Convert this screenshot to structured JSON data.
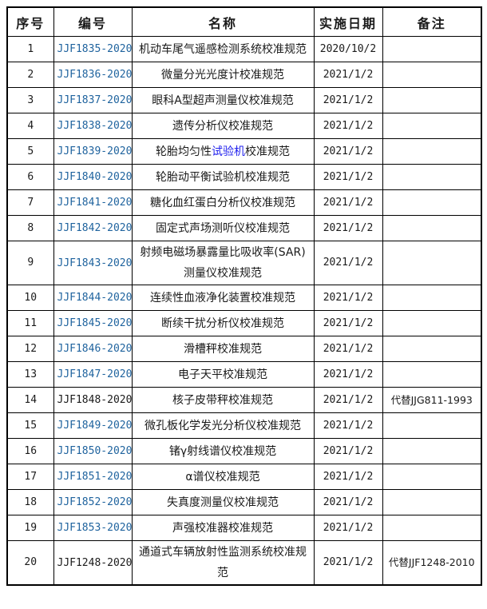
{
  "page": {
    "background": "#ffffff"
  },
  "colors": {
    "border": "#000000",
    "text": "#1a1a1a",
    "code_link_blue": "#1F639E",
    "inline_link_blue": "#2222EE"
  },
  "table": {
    "headers": [
      "序号",
      "编号",
      "名称",
      "实施日期",
      "备注"
    ],
    "rows": [
      {
        "no": "1",
        "code": "JJF1835-2020",
        "code_is_link": true,
        "name": "机动车尾气遥感检测系统校准规范",
        "date": "2020/10/2",
        "remark": ""
      },
      {
        "no": "2",
        "code": "JJF1836-2020",
        "code_is_link": true,
        "name": "微量分光光度计校准规范",
        "date": "2021/1/2",
        "remark": ""
      },
      {
        "no": "3",
        "code": "JJF1837-2020",
        "code_is_link": true,
        "name": "眼科A型超声测量仪校准规范",
        "date": "2021/1/2",
        "remark": ""
      },
      {
        "no": "4",
        "code": "JJF1838-2020",
        "code_is_link": true,
        "name": "遗传分析仪校准规范",
        "date": "2021/1/2",
        "remark": ""
      },
      {
        "no": "5",
        "code": "JJF1839-2020",
        "code_is_link": true,
        "name": [
          {
            "t": "轮胎均匀性",
            "link": false
          },
          {
            "t": "试验机",
            "link": true
          },
          {
            "t": "校准规范",
            "link": false
          }
        ],
        "date": "2021/1/2",
        "remark": ""
      },
      {
        "no": "6",
        "code": "JJF1840-2020",
        "code_is_link": true,
        "name": "轮胎动平衡试验机校准规范",
        "date": "2021/1/2",
        "remark": ""
      },
      {
        "no": "7",
        "code": "JJF1841-2020",
        "code_is_link": true,
        "name": "糖化血红蛋白分析仪校准规范",
        "date": "2021/1/2",
        "remark": ""
      },
      {
        "no": "8",
        "code": "JJF1842-2020",
        "code_is_link": true,
        "name": "固定式声场测听仪校准规范",
        "date": "2021/1/2",
        "remark": ""
      },
      {
        "no": "9",
        "code": "JJF1843-2020",
        "code_is_link": true,
        "name": "射频电磁场暴露量比吸收率(SAR)测量仪校准规范",
        "date": "2021/1/2",
        "remark": ""
      },
      {
        "no": "10",
        "code": "JJF1844-2020",
        "code_is_link": true,
        "name": "连续性血液净化装置校准规范",
        "date": "2021/1/2",
        "remark": ""
      },
      {
        "no": "11",
        "code": "JJF1845-2020",
        "code_is_link": true,
        "name": "断续干扰分析仪校准规范",
        "date": "2021/1/2",
        "remark": ""
      },
      {
        "no": "12",
        "code": "JJF1846-2020",
        "code_is_link": true,
        "name": "滑槽秤校准规范",
        "date": "2021/1/2",
        "remark": ""
      },
      {
        "no": "13",
        "code": "JJF1847-2020",
        "code_is_link": true,
        "name": "电子天平校准规范",
        "date": "2021/1/2",
        "remark": ""
      },
      {
        "no": "14",
        "code": "JJF1848-2020",
        "code_is_link": false,
        "name": "核子皮带秤校准规范",
        "date": "2021/1/2",
        "remark": "代替JJG811-1993"
      },
      {
        "no": "15",
        "code": "JJF1849-2020",
        "code_is_link": true,
        "name": "微孔板化学发光分析仪校准规范",
        "date": "2021/1/2",
        "remark": ""
      },
      {
        "no": "16",
        "code": "JJF1850-2020",
        "code_is_link": true,
        "name": "锗γ射线谱仪校准规范",
        "date": "2021/1/2",
        "remark": ""
      },
      {
        "no": "17",
        "code": "JJF1851-2020",
        "code_is_link": true,
        "name": "α谱仪校准规范",
        "date": "2021/1/2",
        "remark": ""
      },
      {
        "no": "18",
        "code": "JJF1852-2020",
        "code_is_link": true,
        "name": "失真度测量仪校准规范",
        "date": "2021/1/2",
        "remark": ""
      },
      {
        "no": "19",
        "code": "JJF1853-2020",
        "code_is_link": true,
        "name": "声强校准器校准规范",
        "date": "2021/1/2",
        "remark": ""
      },
      {
        "no": "20",
        "code": "JJF1248-2020",
        "code_is_link": false,
        "name": "通道式车辆放射性监测系统校准规范",
        "date": "2021/1/2",
        "remark": "代替JJF1248-2010"
      }
    ]
  }
}
